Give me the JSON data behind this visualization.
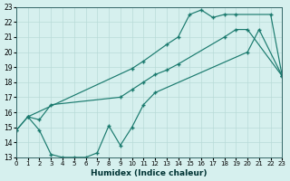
{
  "xlabel": "Humidex (Indice chaleur)",
  "bg_color": "#d6f0ee",
  "line_color": "#1a7a6e",
  "grid_color": "#b8dbd8",
  "xlim": [
    0,
    23
  ],
  "ylim": [
    13,
    23
  ],
  "xticks": [
    0,
    1,
    2,
    3,
    4,
    5,
    6,
    7,
    8,
    9,
    10,
    11,
    12,
    13,
    14,
    15,
    16,
    17,
    18,
    19,
    20,
    21,
    22,
    23
  ],
  "yticks": [
    13,
    14,
    15,
    16,
    17,
    18,
    19,
    20,
    21,
    22,
    23
  ],
  "line_upper_x": [
    0,
    1,
    10,
    11,
    13,
    14,
    15,
    16,
    17,
    18,
    19,
    22,
    23
  ],
  "line_upper_y": [
    14.8,
    15.7,
    18.9,
    19.4,
    20.5,
    21.0,
    22.5,
    22.8,
    22.3,
    22.5,
    22.5,
    22.5,
    18.4
  ],
  "line_mid_x": [
    0,
    1,
    2,
    3,
    9,
    10,
    11,
    12,
    13,
    14,
    18,
    19,
    20,
    23
  ],
  "line_mid_y": [
    14.8,
    15.7,
    15.5,
    16.5,
    17.0,
    17.5,
    18.0,
    18.5,
    18.8,
    19.2,
    21.0,
    21.5,
    21.5,
    18.4
  ],
  "line_lower_x": [
    1,
    2,
    3,
    4,
    5,
    6,
    7,
    8,
    9,
    10,
    11,
    12,
    20,
    21,
    23
  ],
  "line_lower_y": [
    15.7,
    14.8,
    13.2,
    13.0,
    13.0,
    13.0,
    13.3,
    15.1,
    13.8,
    15.0,
    16.5,
    17.3,
    20.0,
    21.5,
    18.4
  ]
}
